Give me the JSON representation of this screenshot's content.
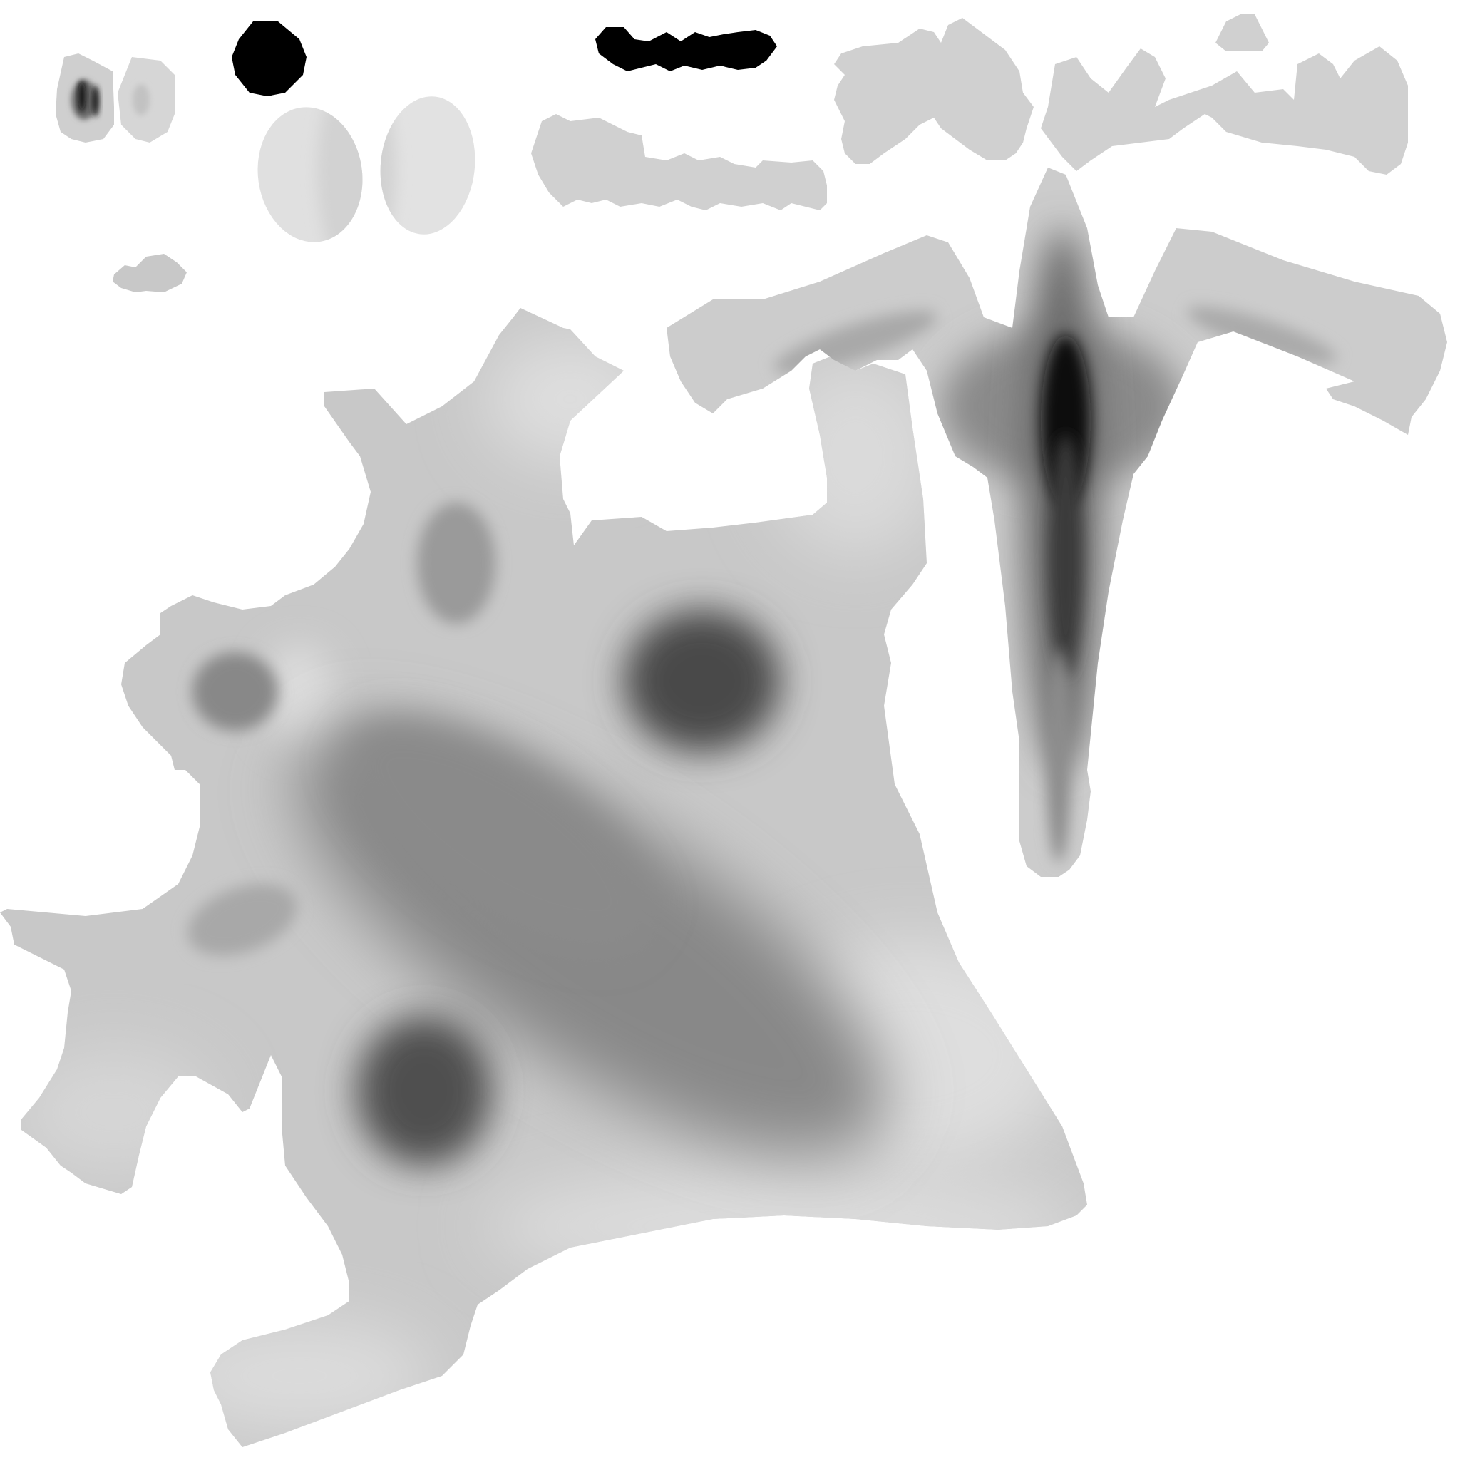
{
  "texture": {
    "kind": "grayscale-uv-map",
    "background_color": "#ffffff",
    "island_light_color": "#d8d8d8",
    "island_mid_color": "#c4c4c4",
    "shadow_mid_color": "#868686",
    "shadow_dark_color": "#4a4a4a",
    "ink_color": "#000000"
  }
}
